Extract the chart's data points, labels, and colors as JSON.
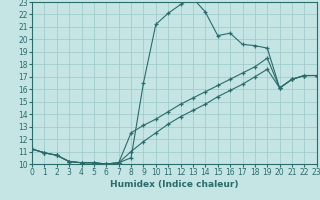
{
  "xlabel": "Humidex (Indice chaleur)",
  "bg_color": "#c5e5e5",
  "grid_color": "#9cc8c8",
  "line_color": "#2a6b6b",
  "xlim": [
    0,
    23
  ],
  "ylim": [
    10,
    23
  ],
  "xticks": [
    0,
    1,
    2,
    3,
    4,
    5,
    6,
    7,
    8,
    9,
    10,
    11,
    12,
    13,
    14,
    15,
    16,
    17,
    18,
    19,
    20,
    21,
    22,
    23
  ],
  "yticks": [
    10,
    11,
    12,
    13,
    14,
    15,
    16,
    17,
    18,
    19,
    20,
    21,
    22,
    23
  ],
  "curve1_x": [
    0,
    1,
    2,
    3,
    4,
    5,
    6,
    7,
    8,
    9,
    10,
    11,
    12,
    13,
    14,
    15,
    16,
    17,
    18,
    19,
    20,
    21,
    22,
    23
  ],
  "curve1_y": [
    11.2,
    10.9,
    10.7,
    10.2,
    10.1,
    10.1,
    10.0,
    10.1,
    10.5,
    16.5,
    21.2,
    22.1,
    22.8,
    23.3,
    22.2,
    20.3,
    20.5,
    19.6,
    19.5,
    19.3,
    16.1,
    16.8,
    17.1,
    17.1
  ],
  "curve2_x": [
    0,
    1,
    2,
    3,
    4,
    5,
    6,
    7,
    8,
    9,
    10,
    11,
    12,
    13,
    14,
    15,
    16,
    17,
    18,
    19,
    20,
    21,
    22,
    23
  ],
  "curve2_y": [
    11.2,
    10.9,
    10.7,
    10.2,
    10.1,
    10.1,
    10.0,
    10.1,
    12.5,
    13.1,
    13.6,
    14.2,
    14.8,
    15.3,
    15.8,
    16.3,
    16.8,
    17.3,
    17.8,
    18.5,
    16.1,
    16.8,
    17.1,
    17.1
  ],
  "curve3_x": [
    0,
    1,
    2,
    3,
    4,
    5,
    6,
    7,
    8,
    9,
    10,
    11,
    12,
    13,
    14,
    15,
    16,
    17,
    18,
    19,
    20,
    21,
    22,
    23
  ],
  "curve3_y": [
    11.2,
    10.9,
    10.7,
    10.2,
    10.1,
    10.1,
    10.0,
    10.1,
    11.0,
    11.8,
    12.5,
    13.2,
    13.8,
    14.3,
    14.8,
    15.4,
    15.9,
    16.4,
    17.0,
    17.6,
    16.1,
    16.8,
    17.1,
    17.1
  ],
  "tick_fontsize": 5.5,
  "xlabel_fontsize": 6.5
}
